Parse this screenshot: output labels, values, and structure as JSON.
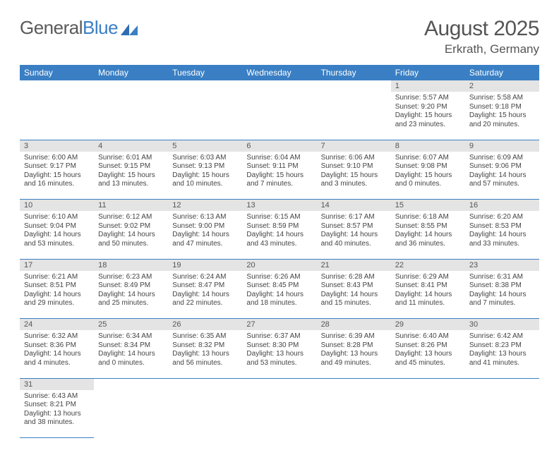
{
  "logo": {
    "text1": "General",
    "text2": "Blue"
  },
  "title": "August 2025",
  "location": "Erkrath, Germany",
  "colors": {
    "header_bg": "#3a7fc4",
    "header_text": "#ffffff",
    "daynum_bg": "#e4e4e4",
    "text": "#444444",
    "rule": "#3a7fc4"
  },
  "day_headers": [
    "Sunday",
    "Monday",
    "Tuesday",
    "Wednesday",
    "Thursday",
    "Friday",
    "Saturday"
  ],
  "weeks": [
    [
      null,
      null,
      null,
      null,
      null,
      {
        "n": "1",
        "sunrise": "Sunrise: 5:57 AM",
        "sunset": "Sunset: 9:20 PM",
        "day1": "Daylight: 15 hours",
        "day2": "and 23 minutes."
      },
      {
        "n": "2",
        "sunrise": "Sunrise: 5:58 AM",
        "sunset": "Sunset: 9:18 PM",
        "day1": "Daylight: 15 hours",
        "day2": "and 20 minutes."
      }
    ],
    [
      {
        "n": "3",
        "sunrise": "Sunrise: 6:00 AM",
        "sunset": "Sunset: 9:17 PM",
        "day1": "Daylight: 15 hours",
        "day2": "and 16 minutes."
      },
      {
        "n": "4",
        "sunrise": "Sunrise: 6:01 AM",
        "sunset": "Sunset: 9:15 PM",
        "day1": "Daylight: 15 hours",
        "day2": "and 13 minutes."
      },
      {
        "n": "5",
        "sunrise": "Sunrise: 6:03 AM",
        "sunset": "Sunset: 9:13 PM",
        "day1": "Daylight: 15 hours",
        "day2": "and 10 minutes."
      },
      {
        "n": "6",
        "sunrise": "Sunrise: 6:04 AM",
        "sunset": "Sunset: 9:11 PM",
        "day1": "Daylight: 15 hours",
        "day2": "and 7 minutes."
      },
      {
        "n": "7",
        "sunrise": "Sunrise: 6:06 AM",
        "sunset": "Sunset: 9:10 PM",
        "day1": "Daylight: 15 hours",
        "day2": "and 3 minutes."
      },
      {
        "n": "8",
        "sunrise": "Sunrise: 6:07 AM",
        "sunset": "Sunset: 9:08 PM",
        "day1": "Daylight: 15 hours",
        "day2": "and 0 minutes."
      },
      {
        "n": "9",
        "sunrise": "Sunrise: 6:09 AM",
        "sunset": "Sunset: 9:06 PM",
        "day1": "Daylight: 14 hours",
        "day2": "and 57 minutes."
      }
    ],
    [
      {
        "n": "10",
        "sunrise": "Sunrise: 6:10 AM",
        "sunset": "Sunset: 9:04 PM",
        "day1": "Daylight: 14 hours",
        "day2": "and 53 minutes."
      },
      {
        "n": "11",
        "sunrise": "Sunrise: 6:12 AM",
        "sunset": "Sunset: 9:02 PM",
        "day1": "Daylight: 14 hours",
        "day2": "and 50 minutes."
      },
      {
        "n": "12",
        "sunrise": "Sunrise: 6:13 AM",
        "sunset": "Sunset: 9:00 PM",
        "day1": "Daylight: 14 hours",
        "day2": "and 47 minutes."
      },
      {
        "n": "13",
        "sunrise": "Sunrise: 6:15 AM",
        "sunset": "Sunset: 8:59 PM",
        "day1": "Daylight: 14 hours",
        "day2": "and 43 minutes."
      },
      {
        "n": "14",
        "sunrise": "Sunrise: 6:17 AM",
        "sunset": "Sunset: 8:57 PM",
        "day1": "Daylight: 14 hours",
        "day2": "and 40 minutes."
      },
      {
        "n": "15",
        "sunrise": "Sunrise: 6:18 AM",
        "sunset": "Sunset: 8:55 PM",
        "day1": "Daylight: 14 hours",
        "day2": "and 36 minutes."
      },
      {
        "n": "16",
        "sunrise": "Sunrise: 6:20 AM",
        "sunset": "Sunset: 8:53 PM",
        "day1": "Daylight: 14 hours",
        "day2": "and 33 minutes."
      }
    ],
    [
      {
        "n": "17",
        "sunrise": "Sunrise: 6:21 AM",
        "sunset": "Sunset: 8:51 PM",
        "day1": "Daylight: 14 hours",
        "day2": "and 29 minutes."
      },
      {
        "n": "18",
        "sunrise": "Sunrise: 6:23 AM",
        "sunset": "Sunset: 8:49 PM",
        "day1": "Daylight: 14 hours",
        "day2": "and 25 minutes."
      },
      {
        "n": "19",
        "sunrise": "Sunrise: 6:24 AM",
        "sunset": "Sunset: 8:47 PM",
        "day1": "Daylight: 14 hours",
        "day2": "and 22 minutes."
      },
      {
        "n": "20",
        "sunrise": "Sunrise: 6:26 AM",
        "sunset": "Sunset: 8:45 PM",
        "day1": "Daylight: 14 hours",
        "day2": "and 18 minutes."
      },
      {
        "n": "21",
        "sunrise": "Sunrise: 6:28 AM",
        "sunset": "Sunset: 8:43 PM",
        "day1": "Daylight: 14 hours",
        "day2": "and 15 minutes."
      },
      {
        "n": "22",
        "sunrise": "Sunrise: 6:29 AM",
        "sunset": "Sunset: 8:41 PM",
        "day1": "Daylight: 14 hours",
        "day2": "and 11 minutes."
      },
      {
        "n": "23",
        "sunrise": "Sunrise: 6:31 AM",
        "sunset": "Sunset: 8:38 PM",
        "day1": "Daylight: 14 hours",
        "day2": "and 7 minutes."
      }
    ],
    [
      {
        "n": "24",
        "sunrise": "Sunrise: 6:32 AM",
        "sunset": "Sunset: 8:36 PM",
        "day1": "Daylight: 14 hours",
        "day2": "and 4 minutes."
      },
      {
        "n": "25",
        "sunrise": "Sunrise: 6:34 AM",
        "sunset": "Sunset: 8:34 PM",
        "day1": "Daylight: 14 hours",
        "day2": "and 0 minutes."
      },
      {
        "n": "26",
        "sunrise": "Sunrise: 6:35 AM",
        "sunset": "Sunset: 8:32 PM",
        "day1": "Daylight: 13 hours",
        "day2": "and 56 minutes."
      },
      {
        "n": "27",
        "sunrise": "Sunrise: 6:37 AM",
        "sunset": "Sunset: 8:30 PM",
        "day1": "Daylight: 13 hours",
        "day2": "and 53 minutes."
      },
      {
        "n": "28",
        "sunrise": "Sunrise: 6:39 AM",
        "sunset": "Sunset: 8:28 PM",
        "day1": "Daylight: 13 hours",
        "day2": "and 49 minutes."
      },
      {
        "n": "29",
        "sunrise": "Sunrise: 6:40 AM",
        "sunset": "Sunset: 8:26 PM",
        "day1": "Daylight: 13 hours",
        "day2": "and 45 minutes."
      },
      {
        "n": "30",
        "sunrise": "Sunrise: 6:42 AM",
        "sunset": "Sunset: 8:23 PM",
        "day1": "Daylight: 13 hours",
        "day2": "and 41 minutes."
      }
    ],
    [
      {
        "n": "31",
        "sunrise": "Sunrise: 6:43 AM",
        "sunset": "Sunset: 8:21 PM",
        "day1": "Daylight: 13 hours",
        "day2": "and 38 minutes."
      },
      null,
      null,
      null,
      null,
      null,
      null
    ]
  ]
}
